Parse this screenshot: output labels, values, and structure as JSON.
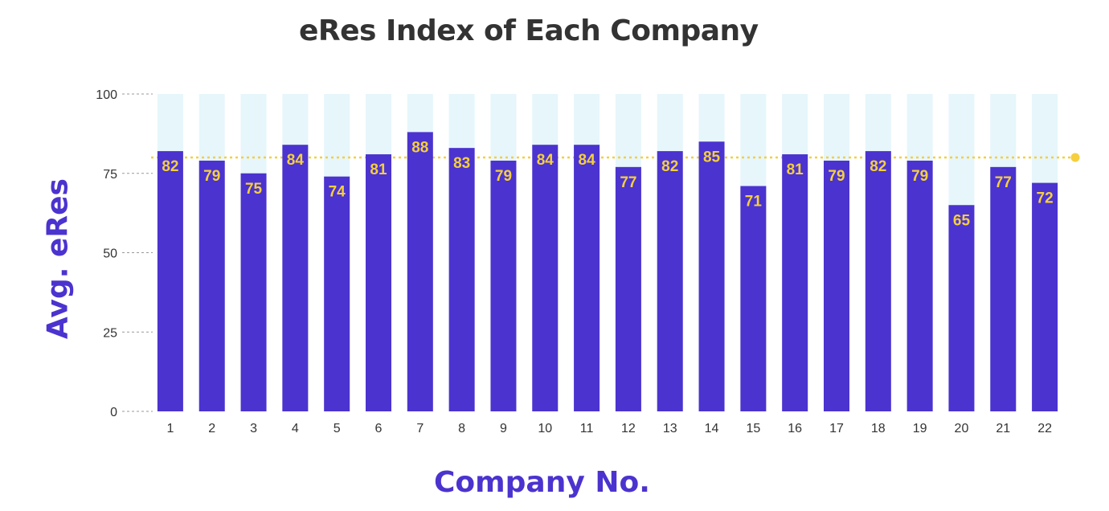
{
  "chart_data": {
    "type": "bar",
    "title": "eRes Index of Each Company",
    "xlabel": "Company No.",
    "ylabel": "Avg. eRes",
    "categories": [
      "1",
      "2",
      "3",
      "4",
      "5",
      "6",
      "7",
      "8",
      "9",
      "10",
      "11",
      "12",
      "13",
      "14",
      "15",
      "16",
      "17",
      "18",
      "19",
      "20",
      "21",
      "22"
    ],
    "values": [
      82,
      79,
      75,
      84,
      74,
      81,
      88,
      83,
      79,
      84,
      84,
      77,
      82,
      85,
      71,
      81,
      79,
      82,
      79,
      65,
      77,
      72
    ],
    "ylim": [
      0,
      100
    ],
    "yticks": [
      0,
      25,
      50,
      75,
      100
    ],
    "reference_line": {
      "value": 80,
      "color": "#f5cf3d"
    },
    "colors": {
      "bar": "#4b33cf",
      "background_bar": "#e6f6fb",
      "data_label": "#f5cf3d",
      "grid": "#999999"
    },
    "grid": false,
    "legend": "none"
  }
}
